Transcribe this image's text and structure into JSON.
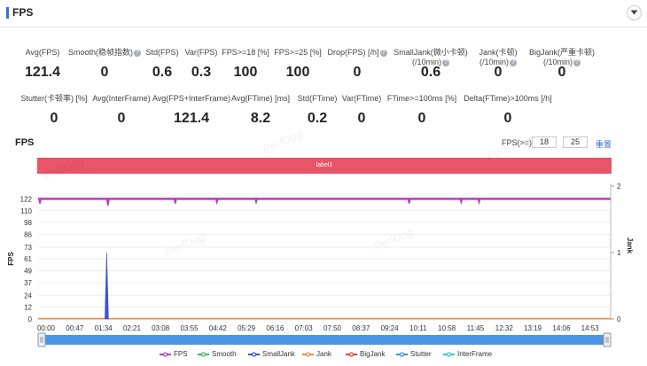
{
  "header": {
    "title": "FPS"
  },
  "stats_row1": [
    {
      "label": "Avg(FPS)",
      "value": "121.4",
      "help": false
    },
    {
      "label": "Smooth(稳帧指数)",
      "value": "0",
      "help": true
    },
    {
      "label": "Std(FPS)",
      "value": "0.6",
      "help": false
    },
    {
      "label": "Var(FPS)",
      "value": "0.3",
      "help": false
    },
    {
      "label": "FPS>=18 [%]",
      "value": "100",
      "help": false
    },
    {
      "label": "FPS>=25 [%]",
      "value": "100",
      "help": false
    },
    {
      "label": "Drop(FPS) [/h]",
      "value": "0",
      "help": true
    },
    {
      "label": "SmallJank(微小卡顿)",
      "label2": "(/10min)",
      "value": "0.6",
      "help": true
    },
    {
      "label": "Jank(卡顿)",
      "label2": "(/10min)",
      "value": "0",
      "help": true
    },
    {
      "label": "BigJank(严重卡顿)",
      "label2": "(/10min)",
      "value": "0",
      "help": true
    }
  ],
  "stats_row2": [
    {
      "label": "Stutter(卡顿率) [%]",
      "value": "0"
    },
    {
      "label": "Avg(InterFrame)",
      "value": "0"
    },
    {
      "label": "Avg(FPS+InterFrame)",
      "value": "121.4"
    },
    {
      "label": "Avg(FTime) [ms]",
      "value": "8.2"
    },
    {
      "label": "Std(FTime)",
      "value": "0.2"
    },
    {
      "label": "Var(FTime)",
      "value": "0"
    },
    {
      "label": "FTime>=100ms [%]",
      "value": "0"
    },
    {
      "label": "Delta(FTime)>100ms [/h]",
      "value": "0"
    }
  ],
  "chart_section": {
    "title": "FPS",
    "threshold_label": "FPS(>=)",
    "threshold_1": "18",
    "threshold_2": "25",
    "reset_label": "重置",
    "label_bar": "label1",
    "watermark": "PerfDog"
  },
  "chart_data": {
    "type": "line",
    "ylabel": "FPS",
    "y2label": "Jank",
    "y_ticks": [
      0,
      12,
      24,
      37,
      49,
      61,
      73,
      86,
      98,
      110,
      122
    ],
    "y2_ticks": [
      0,
      1,
      2
    ],
    "ylim": [
      0,
      135
    ],
    "y2lim": [
      0,
      2
    ],
    "x_ticks": [
      "00:00",
      "00:47",
      "01:34",
      "02:21",
      "03:08",
      "03:55",
      "04:42",
      "05:29",
      "06:16",
      "07:03",
      "07:50",
      "08:37",
      "09:24",
      "10:11",
      "10:58",
      "11:45",
      "12:32",
      "13:19",
      "14:06",
      "14:53"
    ],
    "x_range_seconds": [
      0,
      935
    ],
    "series": [
      {
        "name": "FPS",
        "color": "#b83fb8",
        "baseline": 122,
        "dips": [
          {
            "t": 3,
            "v": 119
          },
          {
            "t": 114,
            "v": 117
          },
          {
            "t": 224,
            "v": 119
          },
          {
            "t": 292,
            "v": 120
          },
          {
            "t": 356,
            "v": 120
          },
          {
            "t": 606,
            "v": 119
          },
          {
            "t": 691,
            "v": 120
          },
          {
            "t": 720,
            "v": 120
          }
        ]
      },
      {
        "name": "Smooth",
        "color": "#3cb371",
        "values": [
          0
        ]
      },
      {
        "name": "SmallJank",
        "color": "#3f4fd6",
        "spikes": [
          {
            "t": 112,
            "v": 1
          }
        ]
      },
      {
        "name": "Jank",
        "color": "#f0883c",
        "values": [
          0
        ]
      },
      {
        "name": "BigJank",
        "color": "#e8413c",
        "values": [
          0
        ]
      },
      {
        "name": "Stutter",
        "color": "#3a8ee6",
        "values": [
          0
        ]
      },
      {
        "name": "InterFrame",
        "color": "#2fc6c6",
        "values": [
          0
        ]
      }
    ]
  }
}
